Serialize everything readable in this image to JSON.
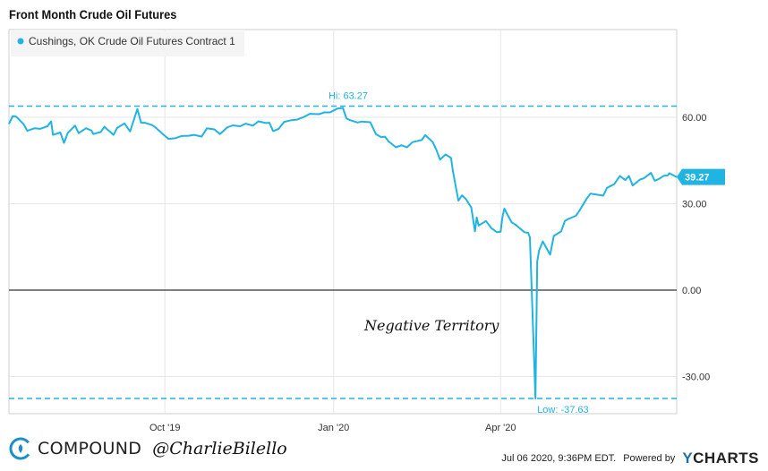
{
  "title": "Front Month Crude Oil Futures",
  "legend": {
    "label": "Cushings, OK Crude Oil Futures Contract 1",
    "color": "#20b4e3"
  },
  "annotations": {
    "high": "Hi: 63.27",
    "low": "Low: -37.63",
    "negative": "Negative Territory",
    "last_value": "39.27"
  },
  "footer": {
    "brand": "COMPOUND",
    "handle": "@CharlieBilello",
    "timestamp": "Jul 06 2020, 9:36PM EDT.",
    "powered_by": "Powered by",
    "ycharts_y": "Y",
    "ycharts_rest": "CHARTS"
  },
  "colors": {
    "series": "#20b4e3",
    "zero_line": "#000000",
    "grid": "#e6e6e6"
  },
  "chart_data": {
    "type": "line",
    "title": "Front Month Crude Oil Futures",
    "xlabel": "",
    "ylabel": "",
    "ylim": [
      -45,
      70
    ],
    "y_ticks": [
      60,
      30,
      0,
      -30
    ],
    "y_tick_labels": [
      "60.00",
      "30.00",
      "0.00",
      "-30.00"
    ],
    "x_tick_labels": [
      "Oct '19",
      "Jan '20",
      "Apr '20"
    ],
    "x_tick_dates": [
      "2019-10-01",
      "2020-01-01",
      "2020-04-01"
    ],
    "grid": true,
    "legend_position": "top-left",
    "high": 63.27,
    "low": -37.63,
    "last": 39.27,
    "series": [
      {
        "name": "Cushings, OK Crude Oil Futures Contract 1",
        "points": [
          [
            "2019-07-08",
            57.7
          ],
          [
            "2019-07-10",
            60.4
          ],
          [
            "2019-07-12",
            60.2
          ],
          [
            "2019-07-16",
            57.6
          ],
          [
            "2019-07-18",
            55.3
          ],
          [
            "2019-07-22",
            56.2
          ],
          [
            "2019-07-25",
            56.0
          ],
          [
            "2019-07-29",
            56.9
          ],
          [
            "2019-07-31",
            58.6
          ],
          [
            "2019-08-01",
            53.9
          ],
          [
            "2019-08-05",
            54.7
          ],
          [
            "2019-08-07",
            51.1
          ],
          [
            "2019-08-09",
            54.5
          ],
          [
            "2019-08-13",
            57.1
          ],
          [
            "2019-08-15",
            54.5
          ],
          [
            "2019-08-19",
            56.2
          ],
          [
            "2019-08-22",
            55.4
          ],
          [
            "2019-08-23",
            54.2
          ],
          [
            "2019-08-27",
            54.9
          ],
          [
            "2019-08-29",
            56.7
          ],
          [
            "2019-09-03",
            53.9
          ],
          [
            "2019-09-05",
            56.3
          ],
          [
            "2019-09-09",
            57.9
          ],
          [
            "2019-09-12",
            55.1
          ],
          [
            "2019-09-16",
            62.9
          ],
          [
            "2019-09-18",
            58.1
          ],
          [
            "2019-09-20",
            58.1
          ],
          [
            "2019-09-24",
            57.3
          ],
          [
            "2019-09-26",
            56.4
          ],
          [
            "2019-09-30",
            54.1
          ],
          [
            "2019-10-03",
            52.5
          ],
          [
            "2019-10-07",
            52.8
          ],
          [
            "2019-10-10",
            53.5
          ],
          [
            "2019-10-14",
            53.6
          ],
          [
            "2019-10-17",
            53.9
          ],
          [
            "2019-10-21",
            53.3
          ],
          [
            "2019-10-24",
            56.2
          ],
          [
            "2019-10-28",
            55.8
          ],
          [
            "2019-10-31",
            54.2
          ],
          [
            "2019-11-04",
            56.5
          ],
          [
            "2019-11-07",
            57.2
          ],
          [
            "2019-11-11",
            56.9
          ],
          [
            "2019-11-14",
            57.8
          ],
          [
            "2019-11-18",
            57.1
          ],
          [
            "2019-11-21",
            58.6
          ],
          [
            "2019-11-25",
            58.0
          ],
          [
            "2019-11-27",
            58.1
          ],
          [
            "2019-11-29",
            55.2
          ],
          [
            "2019-12-02",
            56.0
          ],
          [
            "2019-12-05",
            58.4
          ],
          [
            "2019-12-09",
            59.0
          ],
          [
            "2019-12-12",
            59.2
          ],
          [
            "2019-12-16",
            60.2
          ],
          [
            "2019-12-19",
            61.2
          ],
          [
            "2019-12-24",
            61.1
          ],
          [
            "2019-12-27",
            61.7
          ],
          [
            "2019-12-30",
            61.7
          ],
          [
            "2020-01-03",
            63.0
          ],
          [
            "2020-01-06",
            63.27
          ],
          [
            "2020-01-08",
            59.6
          ],
          [
            "2020-01-10",
            59.0
          ],
          [
            "2020-01-14",
            58.2
          ],
          [
            "2020-01-16",
            58.5
          ],
          [
            "2020-01-21",
            58.3
          ],
          [
            "2020-01-24",
            54.2
          ],
          [
            "2020-01-27",
            53.1
          ],
          [
            "2020-01-29",
            53.3
          ],
          [
            "2020-01-31",
            51.6
          ],
          [
            "2020-02-04",
            49.6
          ],
          [
            "2020-02-07",
            50.3
          ],
          [
            "2020-02-10",
            49.6
          ],
          [
            "2020-02-13",
            51.4
          ],
          [
            "2020-02-18",
            52.1
          ],
          [
            "2020-02-20",
            53.8
          ],
          [
            "2020-02-24",
            51.4
          ],
          [
            "2020-02-26",
            48.7
          ],
          [
            "2020-02-28",
            45.3
          ],
          [
            "2020-03-02",
            47.1
          ],
          [
            "2020-03-05",
            45.9
          ],
          [
            "2020-03-06",
            41.3
          ],
          [
            "2020-03-09",
            31.1
          ],
          [
            "2020-03-11",
            32.9
          ],
          [
            "2020-03-13",
            31.7
          ],
          [
            "2020-03-16",
            28.7
          ],
          [
            "2020-03-18",
            20.4
          ],
          [
            "2020-03-19",
            25.2
          ],
          [
            "2020-03-20",
            22.4
          ],
          [
            "2020-03-24",
            24.0
          ],
          [
            "2020-03-27",
            21.5
          ],
          [
            "2020-03-30",
            20.1
          ],
          [
            "2020-04-01",
            20.3
          ],
          [
            "2020-04-02",
            25.3
          ],
          [
            "2020-04-03",
            28.3
          ],
          [
            "2020-04-07",
            23.6
          ],
          [
            "2020-04-09",
            22.8
          ],
          [
            "2020-04-14",
            20.1
          ],
          [
            "2020-04-16",
            19.9
          ],
          [
            "2020-04-17",
            18.3
          ],
          [
            "2020-04-20",
            -37.63
          ],
          [
            "2020-04-21",
            10.0
          ],
          [
            "2020-04-22",
            13.8
          ],
          [
            "2020-04-24",
            16.9
          ],
          [
            "2020-04-28",
            12.3
          ],
          [
            "2020-04-30",
            18.8
          ],
          [
            "2020-05-04",
            20.4
          ],
          [
            "2020-05-06",
            24.0
          ],
          [
            "2020-05-08",
            24.7
          ],
          [
            "2020-05-12",
            25.8
          ],
          [
            "2020-05-14",
            27.6
          ],
          [
            "2020-05-18",
            31.8
          ],
          [
            "2020-05-20",
            33.5
          ],
          [
            "2020-05-22",
            33.3
          ],
          [
            "2020-05-27",
            32.8
          ],
          [
            "2020-05-29",
            35.5
          ],
          [
            "2020-06-02",
            36.8
          ],
          [
            "2020-06-05",
            39.6
          ],
          [
            "2020-06-08",
            38.2
          ],
          [
            "2020-06-10",
            39.6
          ],
          [
            "2020-06-12",
            36.3
          ],
          [
            "2020-06-16",
            38.4
          ],
          [
            "2020-06-18",
            38.8
          ],
          [
            "2020-06-22",
            40.7
          ],
          [
            "2020-06-24",
            38.0
          ],
          [
            "2020-06-26",
            38.5
          ],
          [
            "2020-06-29",
            39.7
          ],
          [
            "2020-07-01",
            39.8
          ],
          [
            "2020-07-02",
            40.6
          ],
          [
            "2020-07-06",
            39.27
          ]
        ]
      }
    ]
  }
}
